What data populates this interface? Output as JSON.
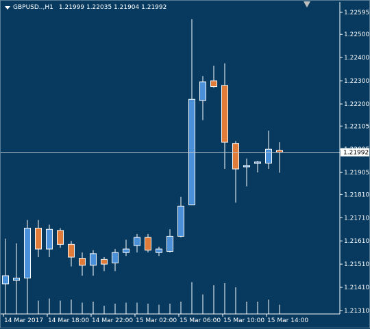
{
  "header": {
    "symbol": "GBPUSD..,H1",
    "ohlc": "1.21999 1.22035 1.21904 1.21992"
  },
  "colors": {
    "background": "#073a5e",
    "bull": "#4a90d9",
    "bear": "#e07b39",
    "wick": "#ffffff",
    "volume": "#ffffff",
    "axis_text": "#ffffff",
    "current_price_line": "#c0c8d0",
    "current_price_tag": "#ffffff"
  },
  "chart_data": {
    "type": "candlestick",
    "symbol": "GBPUSD..,H1",
    "y_ticks": [
      "1.22595",
      "1.22500",
      "1.22400",
      "1.22300",
      "1.22200",
      "1.22105",
      "1.22005",
      "1.21905",
      "1.21810",
      "1.21710",
      "1.21610",
      "1.21510",
      "1.21410",
      "1.21310"
    ],
    "current_price": "1.21992",
    "x_labels": [
      "14 Mar 2017",
      "14 Mar 18:00",
      "14 Mar 22:00",
      "15 Mar 02:00",
      "15 Mar 06:00",
      "15 Mar 10:00",
      "15 Mar 14:00"
    ],
    "candles": [
      {
        "o": 1.21425,
        "h": 1.2162,
        "l": 1.21325,
        "c": 1.2146
      },
      {
        "o": 1.2144,
        "h": 1.216,
        "l": 1.2133,
        "c": 1.2145
      },
      {
        "o": 1.2145,
        "h": 1.217,
        "l": 1.2137,
        "c": 1.21665
      },
      {
        "o": 1.21665,
        "h": 1.217,
        "l": 1.2154,
        "c": 1.21575
      },
      {
        "o": 1.21575,
        "h": 1.2168,
        "l": 1.2154,
        "c": 1.2166
      },
      {
        "o": 1.21655,
        "h": 1.21665,
        "l": 1.2158,
        "c": 1.21595
      },
      {
        "o": 1.21595,
        "h": 1.2161,
        "l": 1.215,
        "c": 1.2154
      },
      {
        "o": 1.21535,
        "h": 1.2156,
        "l": 1.2146,
        "c": 1.21505
      },
      {
        "o": 1.21505,
        "h": 1.2157,
        "l": 1.2146,
        "c": 1.21555
      },
      {
        "o": 1.2153,
        "h": 1.2154,
        "l": 1.2148,
        "c": 1.2151
      },
      {
        "o": 1.21515,
        "h": 1.21575,
        "l": 1.2148,
        "c": 1.2156
      },
      {
        "o": 1.2156,
        "h": 1.21615,
        "l": 1.21545,
        "c": 1.21575
      },
      {
        "o": 1.2159,
        "h": 1.2164,
        "l": 1.2156,
        "c": 1.21625
      },
      {
        "o": 1.21625,
        "h": 1.2164,
        "l": 1.2156,
        "c": 1.2157
      },
      {
        "o": 1.2156,
        "h": 1.21585,
        "l": 1.21545,
        "c": 1.21575
      },
      {
        "o": 1.21565,
        "h": 1.2166,
        "l": 1.2156,
        "c": 1.2163
      },
      {
        "o": 1.2163,
        "h": 1.218,
        "l": 1.21625,
        "c": 1.2176
      },
      {
        "o": 1.21765,
        "h": 1.22565,
        "l": 1.21765,
        "c": 1.2222
      },
      {
        "o": 1.22215,
        "h": 1.2232,
        "l": 1.2213,
        "c": 1.22295
      },
      {
        "o": 1.223,
        "h": 1.22365,
        "l": 1.2227,
        "c": 1.22275
      },
      {
        "o": 1.2228,
        "h": 1.22375,
        "l": 1.2192,
        "c": 1.22035
      },
      {
        "o": 1.2203,
        "h": 1.2204,
        "l": 1.21775,
        "c": 1.2192
      },
      {
        "o": 1.2193,
        "h": 1.21965,
        "l": 1.21845,
        "c": 1.21935
      },
      {
        "o": 1.21945,
        "h": 1.21955,
        "l": 1.21905,
        "c": 1.2195
      },
      {
        "o": 1.21945,
        "h": 1.22085,
        "l": 1.2192,
        "c": 1.22005
      },
      {
        "o": 1.22,
        "h": 1.22035,
        "l": 1.21904,
        "c": 1.21992
      }
    ],
    "volumes": [
      0.18,
      0.12,
      0.26,
      0.13,
      0.15,
      0.13,
      0.14,
      0.11,
      0.12,
      0.08,
      0.1,
      0.11,
      0.11,
      0.1,
      0.09,
      0.1,
      0.12,
      0.31,
      0.19,
      0.28,
      0.3,
      0.26,
      0.12,
      0.12,
      0.14,
      0.09
    ]
  }
}
